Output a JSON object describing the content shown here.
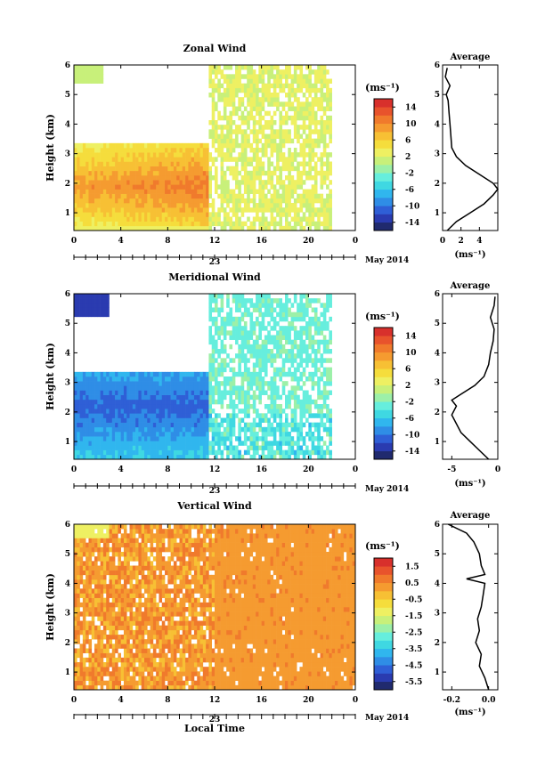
{
  "figure": {
    "date_label": "May 2014",
    "day_label": "23",
    "xlabel_bottom": "Local Time",
    "ylabel": "Height (km)",
    "colorbar_unit": "(ms⁻¹)",
    "avg_unit": "(ms⁻¹)",
    "avg_title": "Average"
  },
  "chart_data": [
    {
      "type": "heatmap",
      "title": "Zonal Wind",
      "xlabel": "",
      "ylabel": "Height (km)",
      "xticks": [
        "0",
        "4",
        "8",
        "12",
        "16",
        "20",
        "0"
      ],
      "xlim": [
        0,
        24
      ],
      "ylim": [
        0.4,
        6.0
      ],
      "yticks": [
        "1",
        "2",
        "3",
        "4",
        "5",
        "6"
      ],
      "colorbar_ticks": [
        "14",
        "10",
        "6",
        "2",
        "-2",
        "-6",
        "-10",
        "-14"
      ],
      "colorbar_range": [
        -16,
        16
      ],
      "profile": {
        "title": "Average",
        "xticks": [
          "0",
          "2",
          "4"
        ],
        "xlim": [
          0,
          6
        ],
        "heights": [
          0.4,
          0.7,
          1.0,
          1.3,
          1.6,
          1.8,
          2.0,
          2.3,
          2.6,
          2.9,
          3.2,
          3.6,
          4.0,
          4.4,
          4.8,
          5.0,
          5.3,
          5.6,
          5.9
        ],
        "values": [
          0.5,
          1.5,
          3.0,
          4.5,
          5.5,
          6.0,
          5.5,
          4.0,
          2.5,
          1.5,
          1.0,
          0.9,
          0.8,
          0.7,
          0.6,
          0.4,
          0.8,
          0.3,
          0.5
        ]
      }
    },
    {
      "type": "heatmap",
      "title": "Meridional Wind",
      "xlabel": "",
      "ylabel": "Height (km)",
      "xticks": [
        "0",
        "4",
        "8",
        "12",
        "16",
        "20",
        "0"
      ],
      "xlim": [
        0,
        24
      ],
      "ylim": [
        0.4,
        6.0
      ],
      "yticks": [
        "1",
        "2",
        "3",
        "4",
        "5",
        "6"
      ],
      "colorbar_ticks": [
        "14",
        "10",
        "6",
        "2",
        "-2",
        "-6",
        "-10",
        "-14"
      ],
      "colorbar_range": [
        -16,
        16
      ],
      "profile": {
        "title": "Average",
        "xticks": [
          "-5",
          "0"
        ],
        "xlim": [
          -6,
          0
        ],
        "heights": [
          0.4,
          0.7,
          1.0,
          1.3,
          1.6,
          1.9,
          2.2,
          2.4,
          2.6,
          2.9,
          3.2,
          3.6,
          4.0,
          4.4,
          4.8,
          5.2,
          5.6,
          5.9
        ],
        "values": [
          -1.0,
          -2.0,
          -3.0,
          -4.0,
          -4.5,
          -5.0,
          -4.5,
          -5.0,
          -4.0,
          -2.5,
          -1.5,
          -1.0,
          -0.8,
          -0.5,
          -0.4,
          -0.8,
          -0.4,
          -0.3
        ]
      }
    },
    {
      "type": "heatmap",
      "title": "Vertical Wind",
      "xlabel": "Local Time",
      "ylabel": "Height (km)",
      "xticks": [
        "0",
        "4",
        "8",
        "12",
        "16",
        "20",
        "0"
      ],
      "xlim": [
        0,
        24
      ],
      "ylim": [
        0.4,
        6.0
      ],
      "yticks": [
        "1",
        "2",
        "3",
        "4",
        "5",
        "6"
      ],
      "colorbar_ticks": [
        "1.5",
        "0.5",
        "-0.5",
        "-1.5",
        "-2.5",
        "-3.5",
        "-4.5",
        "-5.5"
      ],
      "colorbar_range": [
        -6,
        2
      ],
      "profile": {
        "title": "Average",
        "xticks": [
          "-0.2",
          "0.0"
        ],
        "xlim": [
          -0.25,
          0.05
        ],
        "heights": [
          0.4,
          0.8,
          1.2,
          1.6,
          2.0,
          2.4,
          2.8,
          3.2,
          3.6,
          4.0,
          4.15,
          4.3,
          4.6,
          5.0,
          5.4,
          5.7,
          6.0
        ],
        "values": [
          0.0,
          -0.02,
          -0.05,
          -0.04,
          -0.07,
          -0.05,
          -0.06,
          -0.04,
          -0.03,
          -0.02,
          -0.12,
          -0.02,
          -0.04,
          -0.05,
          -0.08,
          -0.12,
          -0.22
        ]
      }
    }
  ]
}
